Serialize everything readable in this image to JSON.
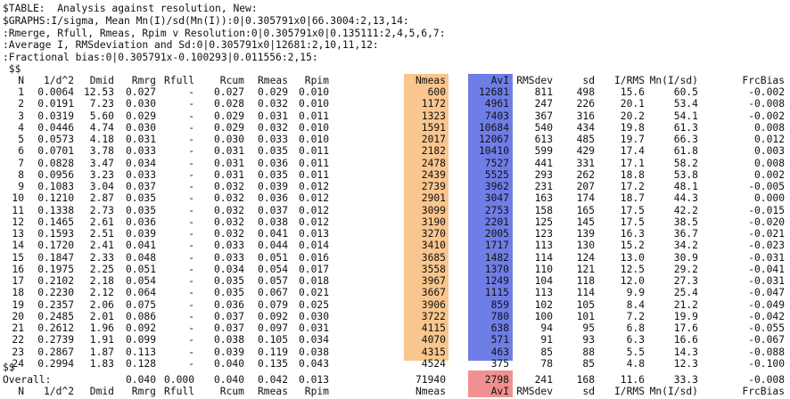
{
  "header": {
    "line1": "$TABLE:  Analysis against resolution, New:",
    "line2": "$GRAPHS:I/sigma, Mean Mn(I)/sd(Mn(I)):0|0.305791x0|66.3004:2,13,14:",
    "line3": ":Rmerge, Rfull, Rmeas, Rpim v Resolution:0|0.305791x0|0.135111:2,4,5,6,7:",
    "line4": ":Average I, RMSdeviation and Sd:0|0.305791x0|12681:2,10,11,12:",
    "line5": ":Fractional bias:0|0.305791x-0.100293|0.011556:2,15:",
    "start_marker": " $$",
    "end_marker": "$$"
  },
  "columns": [
    "N",
    "1/d^2",
    "Dmid",
    "Rmrg",
    "Rfull",
    "Rcum",
    "Rmeas",
    "Rpim",
    "Nmeas",
    "AvI",
    "RMSdev",
    "sd",
    "I/RMS",
    "Mn(I/sd)",
    "FrcBias"
  ],
  "rows": [
    [
      "1",
      "0.0064",
      "12.53",
      "0.027",
      "-",
      "0.027",
      "0.029",
      "0.010",
      "600",
      "12681",
      "811",
      "498",
      "15.6",
      "60.5",
      "-0.002"
    ],
    [
      "2",
      "0.0191",
      "7.23",
      "0.030",
      "-",
      "0.028",
      "0.032",
      "0.010",
      "1172",
      "4961",
      "247",
      "226",
      "20.1",
      "53.4",
      "-0.008"
    ],
    [
      "3",
      "0.0319",
      "5.60",
      "0.029",
      "-",
      "0.029",
      "0.031",
      "0.011",
      "1323",
      "7403",
      "367",
      "316",
      "20.2",
      "54.1",
      "-0.002"
    ],
    [
      "4",
      "0.0446",
      "4.74",
      "0.030",
      "-",
      "0.029",
      "0.032",
      "0.010",
      "1591",
      "10684",
      "540",
      "434",
      "19.8",
      "61.3",
      "0.008"
    ],
    [
      "5",
      "0.0573",
      "4.18",
      "0.031",
      "-",
      "0.030",
      "0.033",
      "0.010",
      "2017",
      "12067",
      "613",
      "485",
      "19.7",
      "66.3",
      "0.012"
    ],
    [
      "6",
      "0.0701",
      "3.78",
      "0.033",
      "-",
      "0.031",
      "0.035",
      "0.011",
      "2182",
      "10410",
      "599",
      "429",
      "17.4",
      "61.8",
      "0.003"
    ],
    [
      "7",
      "0.0828",
      "3.47",
      "0.034",
      "-",
      "0.031",
      "0.036",
      "0.011",
      "2478",
      "7527",
      "441",
      "331",
      "17.1",
      "58.2",
      "0.008"
    ],
    [
      "8",
      "0.0956",
      "3.23",
      "0.033",
      "-",
      "0.031",
      "0.035",
      "0.011",
      "2439",
      "5525",
      "293",
      "262",
      "18.8",
      "53.8",
      "0.002"
    ],
    [
      "9",
      "0.1083",
      "3.04",
      "0.037",
      "-",
      "0.032",
      "0.039",
      "0.012",
      "2739",
      "3962",
      "231",
      "207",
      "17.2",
      "48.1",
      "-0.005"
    ],
    [
      "10",
      "0.1210",
      "2.87",
      "0.035",
      "-",
      "0.032",
      "0.036",
      "0.012",
      "2901",
      "3047",
      "163",
      "174",
      "18.7",
      "44.3",
      "0.000"
    ],
    [
      "11",
      "0.1338",
      "2.73",
      "0.035",
      "-",
      "0.032",
      "0.037",
      "0.012",
      "3099",
      "2753",
      "158",
      "165",
      "17.5",
      "42.2",
      "-0.015"
    ],
    [
      "12",
      "0.1465",
      "2.61",
      "0.036",
      "-",
      "0.032",
      "0.038",
      "0.012",
      "3190",
      "2201",
      "125",
      "145",
      "17.5",
      "38.5",
      "-0.020"
    ],
    [
      "13",
      "0.1593",
      "2.51",
      "0.039",
      "-",
      "0.032",
      "0.041",
      "0.013",
      "3270",
      "2005",
      "123",
      "139",
      "16.3",
      "36.7",
      "-0.021"
    ],
    [
      "14",
      "0.1720",
      "2.41",
      "0.041",
      "-",
      "0.033",
      "0.044",
      "0.014",
      "3410",
      "1717",
      "113",
      "130",
      "15.2",
      "34.2",
      "-0.023"
    ],
    [
      "15",
      "0.1847",
      "2.33",
      "0.048",
      "-",
      "0.033",
      "0.051",
      "0.016",
      "3685",
      "1482",
      "114",
      "124",
      "13.0",
      "30.9",
      "-0.031"
    ],
    [
      "16",
      "0.1975",
      "2.25",
      "0.051",
      "-",
      "0.034",
      "0.054",
      "0.017",
      "3558",
      "1370",
      "110",
      "121",
      "12.5",
      "29.2",
      "-0.041"
    ],
    [
      "17",
      "0.2102",
      "2.18",
      "0.054",
      "-",
      "0.035",
      "0.057",
      "0.018",
      "3967",
      "1249",
      "104",
      "118",
      "12.0",
      "27.3",
      "-0.031"
    ],
    [
      "18",
      "0.2230",
      "2.12",
      "0.064",
      "-",
      "0.035",
      "0.067",
      "0.021",
      "3667",
      "1115",
      "113",
      "114",
      "9.9",
      "25.4",
      "-0.047"
    ],
    [
      "19",
      "0.2357",
      "2.06",
      "0.075",
      "-",
      "0.036",
      "0.079",
      "0.025",
      "3906",
      "859",
      "102",
      "105",
      "8.4",
      "21.2",
      "-0.049"
    ],
    [
      "20",
      "0.2485",
      "2.01",
      "0.086",
      "-",
      "0.037",
      "0.092",
      "0.030",
      "3722",
      "780",
      "100",
      "101",
      "7.2",
      "19.9",
      "-0.042"
    ],
    [
      "21",
      "0.2612",
      "1.96",
      "0.092",
      "-",
      "0.037",
      "0.097",
      "0.031",
      "4115",
      "638",
      "94",
      "95",
      "6.8",
      "17.6",
      "-0.055"
    ],
    [
      "22",
      "0.2739",
      "1.91",
      "0.099",
      "-",
      "0.038",
      "0.105",
      "0.034",
      "4070",
      "571",
      "91",
      "93",
      "6.3",
      "16.6",
      "-0.067"
    ],
    [
      "23",
      "0.2867",
      "1.87",
      "0.113",
      "-",
      "0.039",
      "0.119",
      "0.038",
      "4315",
      "463",
      "85",
      "88",
      "5.5",
      "14.3",
      "-0.088"
    ],
    [
      "24",
      "0.2994",
      "1.83",
      "0.128",
      "-",
      "0.040",
      "0.135",
      "0.043",
      "4524",
      "375",
      "78",
      "85",
      "4.8",
      "12.3",
      "-0.100"
    ]
  ],
  "overall": [
    "Overall:",
    "",
    "",
    "0.040",
    "0.000",
    "0.040",
    "0.042",
    "0.013",
    "71940",
    "2798",
    "241",
    "168",
    "11.6",
    "33.3",
    "-0.008"
  ],
  "footer_columns": [
    "N",
    "1/d^2",
    "Dmid",
    "Rmrg",
    "Rfull",
    "Rcum",
    "Rmeas",
    "Rpim",
    "Nmeas",
    "AvI",
    "RMSdev",
    "sd",
    "I/RMS",
    "Mn(I/sd)",
    "FrcBias"
  ],
  "colors": {
    "nmeas_highlight": "#f8c68e",
    "avi_highlight": "#6f7ee6",
    "avi_overall_highlight": "#f09090"
  }
}
